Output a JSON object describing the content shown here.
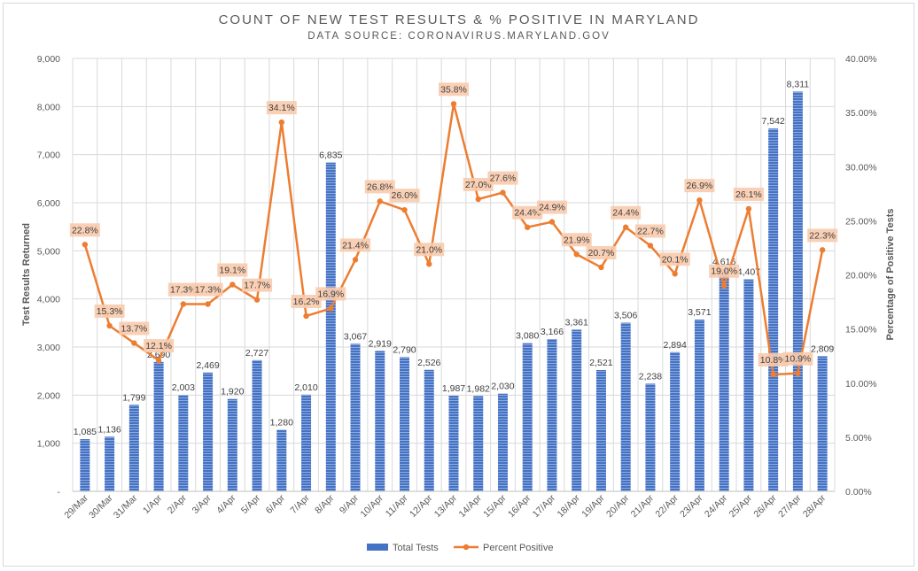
{
  "chart_data": {
    "type": "bar",
    "title": "COUNT OF NEW TEST RESULTS & % POSITIVE IN MARYLAND",
    "subtitle": "DATA SOURCE: CORONAVIRUS.MARYLAND.GOV",
    "ylabel": "Test Results Returned",
    "y2label": "Percentage of Positive Tests",
    "ylim": [
      0,
      9000
    ],
    "y2lim": [
      0,
      40
    ],
    "yticks": [
      "-",
      "1,000",
      "2,000",
      "3,000",
      "4,000",
      "5,000",
      "6,000",
      "7,000",
      "8,000",
      "9,000"
    ],
    "y2ticks": [
      "0.00%",
      "5.00%",
      "10.00%",
      "15.00%",
      "20.00%",
      "25.00%",
      "30.00%",
      "35.00%",
      "40.00%"
    ],
    "grid": true,
    "legend_position": "bottom",
    "categories": [
      "29/Mar",
      "30/Mar",
      "31/Mar",
      "1/Apr",
      "2/Apr",
      "3/Apr",
      "4/Apr",
      "5/Apr",
      "6/Apr",
      "7/Apr",
      "8/Apr",
      "9/Apr",
      "10/Apr",
      "11/Apr",
      "12/Apr",
      "13/Apr",
      "14/Apr",
      "15/Apr",
      "16/Apr",
      "17/Apr",
      "18/Apr",
      "19/Apr",
      "20/Apr",
      "21/Apr",
      "22/Apr",
      "23/Apr",
      "24/Apr",
      "25/Apr",
      "26/Apr",
      "27/Apr",
      "28/Apr"
    ],
    "series": [
      {
        "name": "Total Tests",
        "type": "bar",
        "axis": "left",
        "color": "#4472c4",
        "values": [
          1085,
          1136,
          1799,
          2690,
          2003,
          2469,
          1920,
          2727,
          1280,
          2010,
          6835,
          3067,
          2919,
          2790,
          2526,
          1987,
          1982,
          2030,
          3080,
          3166,
          3361,
          2521,
          3506,
          2238,
          2894,
          3571,
          4616,
          4407,
          7542,
          8311,
          2809
        ],
        "labels": [
          "1,085",
          "1,136",
          "1,799",
          "2,690",
          "2,003",
          "2,469",
          "1,920",
          "2,727",
          "1,280",
          "2,010",
          "6,835",
          "3,067",
          "2,919",
          "2,790",
          "2,526",
          "1,987",
          "1,982",
          "2,030",
          "3,080",
          "3,166",
          "3,361",
          "2,521",
          "3,506",
          "2,238",
          "2,894",
          "3,571",
          "4,616",
          "4,407",
          "7,542",
          "8,311",
          "2,809"
        ]
      },
      {
        "name": "Percent Positive",
        "type": "line",
        "axis": "right",
        "color": "#ed7d31",
        "label_bg": "#f8cbad",
        "values": [
          22.8,
          15.3,
          13.7,
          12.1,
          17.3,
          17.3,
          19.1,
          17.7,
          34.1,
          16.2,
          16.9,
          21.4,
          26.8,
          26.0,
          21.0,
          35.8,
          27.0,
          27.6,
          24.4,
          24.9,
          21.9,
          20.7,
          24.4,
          22.7,
          20.1,
          26.9,
          19.0,
          26.1,
          10.8,
          10.9,
          22.3
        ],
        "labels": [
          "22.8%",
          "15.3%",
          "13.7%",
          "12.1%",
          "17.3%",
          "17.3%",
          "19.1%",
          "17.7%",
          "34.1%",
          "16.2%",
          "16.9%",
          "21.4%",
          "26.8%",
          "26.0%",
          "21.0%",
          "35.8%",
          "27.0%",
          "27.6%",
          "24.4%",
          "24.9%",
          "21.9%",
          "20.7%",
          "24.4%",
          "22.7%",
          "20.1%",
          "26.9%",
          "19.0%",
          "26.1%",
          "10.8%",
          "10.9%",
          "22.3%"
        ]
      }
    ]
  }
}
